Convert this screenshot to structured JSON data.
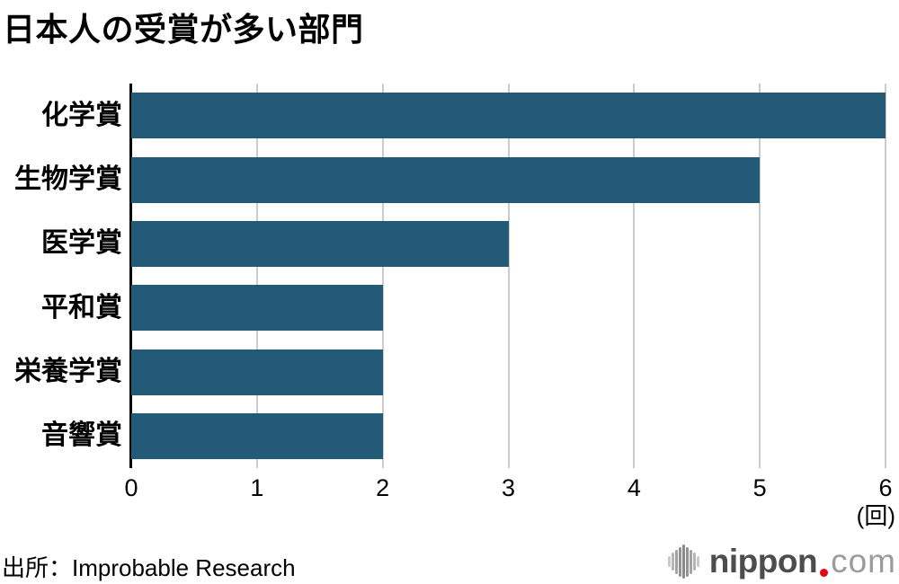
{
  "chart_data": {
    "type": "bar",
    "orientation": "horizontal",
    "title": "日本人の受賞が多い部門",
    "categories": [
      "化学賞",
      "生物学賞",
      "医学賞",
      "平和賞",
      "栄養学賞",
      "音響賞"
    ],
    "values": [
      6,
      5,
      3,
      2,
      2,
      2
    ],
    "xlabel": "(回)",
    "ylabel": "",
    "xlim": [
      0,
      6
    ],
    "xticks": [
      0,
      1,
      2,
      3,
      4,
      5,
      6
    ],
    "grid": true,
    "legend": false,
    "bar_color": "#235a78",
    "gridline_color": "#cccccc",
    "axis_color": "#000000"
  },
  "source": "出所：Improbable Research",
  "logo": {
    "brand": "nippon",
    "tld": "com",
    "brand_color": "#4d4d4d",
    "dot_color": "#e60012",
    "tld_color": "#9b9b9b",
    "icon": "waveform-icon"
  }
}
